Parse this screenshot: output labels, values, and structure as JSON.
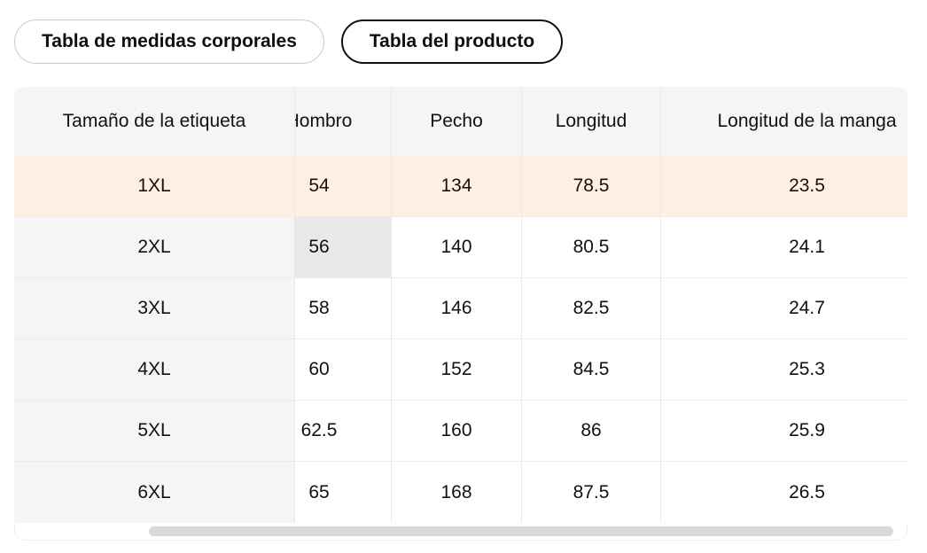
{
  "tabs": [
    {
      "label": "Tabla de medidas corporales",
      "selected": false
    },
    {
      "label": "Tabla del producto",
      "selected": true
    }
  ],
  "table": {
    "columns": [
      "Tamaño de la etiqueta",
      "Hombro",
      "Pecho",
      "Longitud",
      "Longitud de la manga"
    ],
    "rows": [
      {
        "size": "1XL",
        "values": [
          "54",
          "134",
          "78.5",
          "23.5"
        ],
        "highlighted": true
      },
      {
        "size": "2XL",
        "values": [
          "56",
          "140",
          "80.5",
          "24.1"
        ],
        "highlighted": false
      },
      {
        "size": "3XL",
        "values": [
          "58",
          "146",
          "82.5",
          "24.7"
        ],
        "highlighted": false
      },
      {
        "size": "4XL",
        "values": [
          "60",
          "152",
          "84.5",
          "25.3"
        ],
        "highlighted": false
      },
      {
        "size": "5XL",
        "values": [
          "62.5",
          "160",
          "86",
          "25.9"
        ],
        "highlighted": false
      },
      {
        "size": "6XL",
        "values": [
          "65",
          "168",
          "87.5",
          "26.5"
        ],
        "highlighted": false
      }
    ],
    "highlighted_row": "1XL",
    "hovered_cell": {
      "row": "2XL",
      "column": "Hombro"
    },
    "colors": {
      "highlight_row": "#fdf0e2",
      "hover_cell": "#e9e9e9",
      "header_bg": "#f5f5f5"
    }
  }
}
